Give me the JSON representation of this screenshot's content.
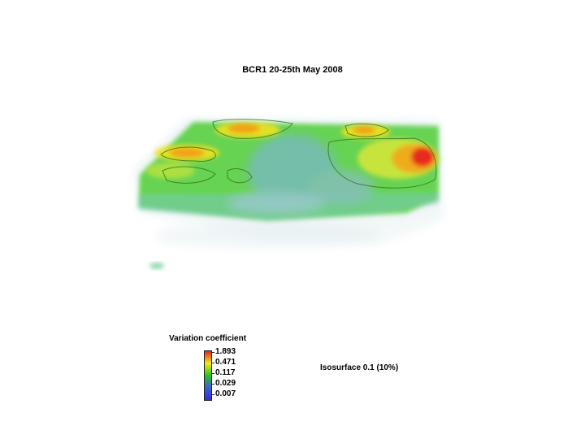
{
  "title": "BCR1 20-25th May 2008",
  "legend": {
    "title": "Variation coefficient",
    "ticks": [
      "1.893",
      "0.471",
      "0.117",
      "0.029",
      "0.007"
    ],
    "colors": [
      "#e8231c",
      "#f2ea1c",
      "#2bc21e",
      "#3a5fd8",
      "#3a2ad8"
    ]
  },
  "isosurface_label": "Isosurface 0.1 (10%)"
}
